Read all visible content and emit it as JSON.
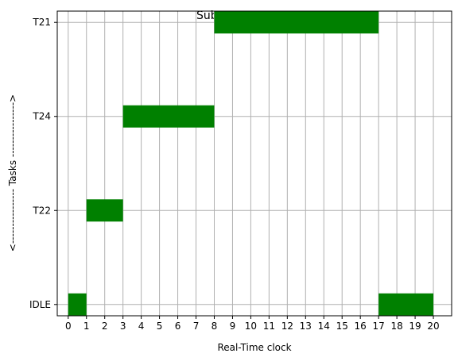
{
  "chart_data": {
    "type": "gantt",
    "title": "Subsystem_2 Core_2",
    "xlabel": "Real-Time clock",
    "ylabel": "<---------------- Tasks ---------------->",
    "xlim": [
      -0.6,
      21.0
    ],
    "x_ticks": [
      "0",
      "1",
      "2",
      "3",
      "4",
      "5",
      "6",
      "7",
      "8",
      "9",
      "10",
      "11",
      "12",
      "13",
      "14",
      "15",
      "16",
      "17",
      "18",
      "19",
      "20"
    ],
    "categories": [
      "IDLE",
      "T22",
      "T24",
      "T21"
    ],
    "grid": true,
    "bar_color": "#008000",
    "grid_color": "#b0b0b0",
    "bars": [
      {
        "task": "IDLE",
        "start": 0,
        "end": 1
      },
      {
        "task": "T22",
        "start": 1,
        "end": 3
      },
      {
        "task": "T24",
        "start": 3,
        "end": 8
      },
      {
        "task": "T21",
        "start": 8,
        "end": 17
      },
      {
        "task": "IDLE",
        "start": 17,
        "end": 20
      }
    ]
  }
}
